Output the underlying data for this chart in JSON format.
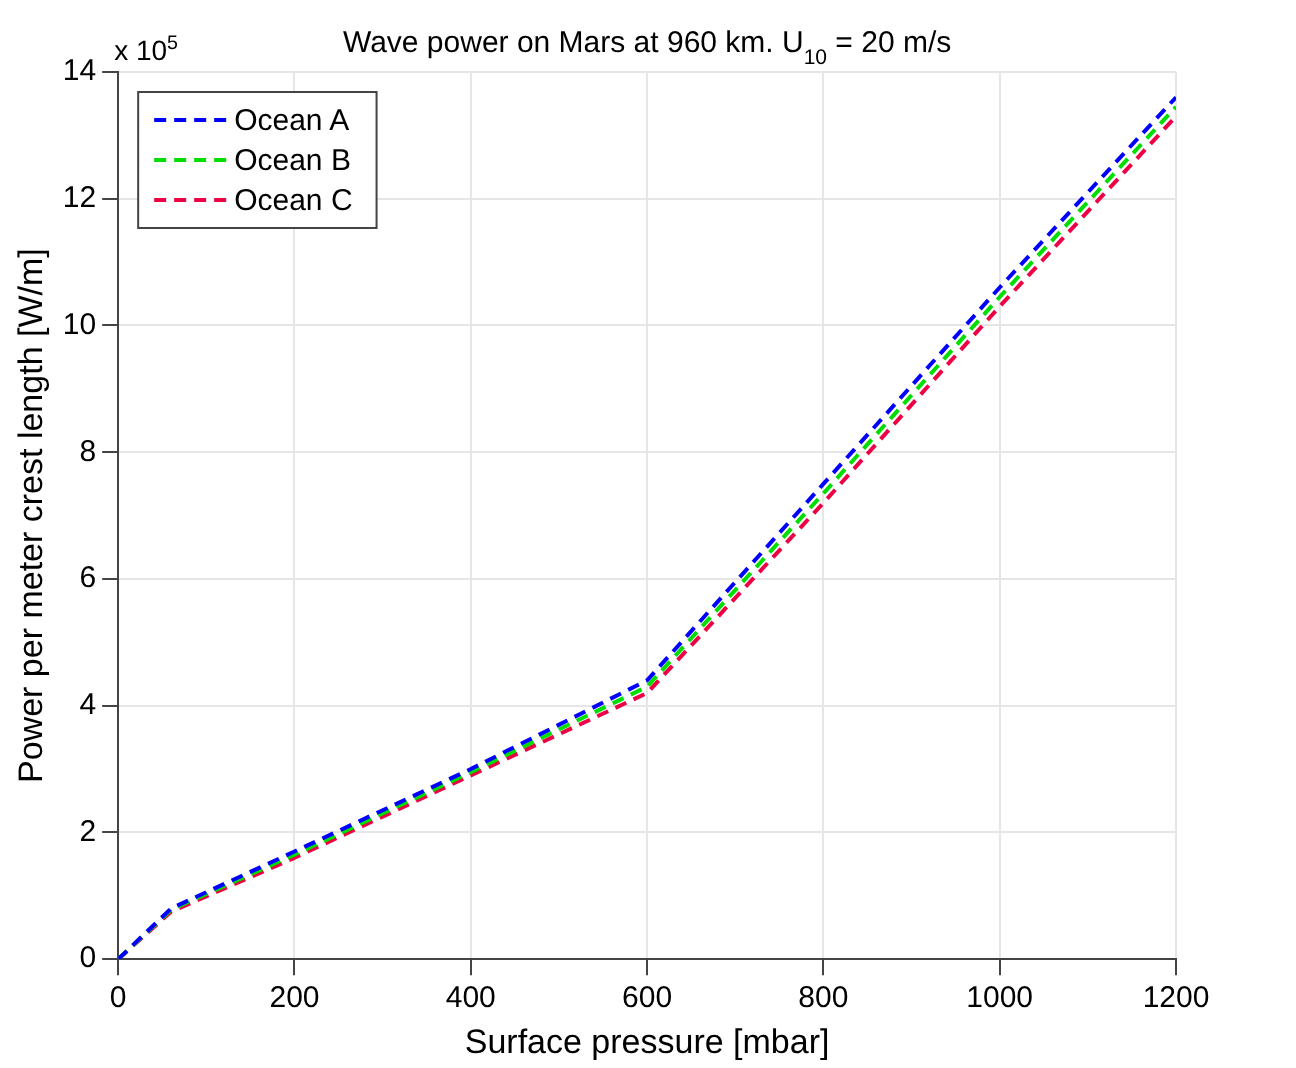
{
  "chart_data": {
    "type": "line",
    "title": "Wave power on Mars at 960 km. U$_{10}$ = 20 m/s",
    "xlabel": "Surface pressure [mbar]",
    "ylabel": "Power per meter crest length [W/m]",
    "annotations": [
      "x 10$^{5}$"
    ],
    "x": [
      0,
      60,
      200,
      400,
      600,
      800,
      1000,
      1200
    ],
    "series": [
      {
        "name": "Ocean A",
        "color": "#0000ff",
        "values": [
          0,
          0.8,
          1.7,
          3.0,
          4.4,
          7.5,
          10.6,
          13.6
        ]
      },
      {
        "name": "Ocean B",
        "color": "#00dd00",
        "values": [
          0,
          0.78,
          1.65,
          2.95,
          4.3,
          7.35,
          10.45,
          13.45
        ]
      },
      {
        "name": "Ocean C",
        "color": "#ee0044",
        "values": [
          0,
          0.75,
          1.6,
          2.9,
          4.2,
          7.2,
          10.3,
          13.3
        ]
      }
    ],
    "xlim": [
      0,
      1200
    ],
    "xticks": [
      0,
      200,
      400,
      600,
      800,
      1000,
      1200
    ],
    "ylim": [
      0,
      14
    ],
    "yticks": [
      0,
      2,
      4,
      6,
      8,
      10,
      12,
      14
    ],
    "grid": true,
    "legend": "top left",
    "line_style": "dashed",
    "marker": "none"
  }
}
